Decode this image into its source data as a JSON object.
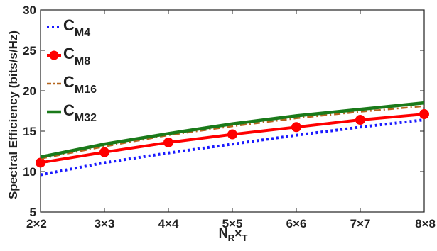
{
  "chart_data": {
    "type": "line",
    "categories": [
      "2×2",
      "3×3",
      "4×4",
      "5×5",
      "6×6",
      "7×7",
      "8×8"
    ],
    "xlabel": {
      "main": "N",
      "sub1": "R",
      "times": "×",
      "sub2": "T"
    },
    "ylabel": "Spectral Efficiency (bits/s/Hz)",
    "ylim": [
      5,
      30
    ],
    "yticks": [
      5,
      10,
      15,
      20,
      25,
      30
    ],
    "grid": false,
    "legend_position": "top-left",
    "series": [
      {
        "name": "C",
        "name_sub": "M4",
        "color": "#1a1aff",
        "style": "dotted",
        "values": [
          9.6,
          11.1,
          12.3,
          13.4,
          14.5,
          15.5,
          16.4
        ]
      },
      {
        "name": "C",
        "name_sub": "M8",
        "color": "#ff0000",
        "style": "solid-markers",
        "values": [
          11.1,
          12.4,
          13.6,
          14.6,
          15.5,
          16.4,
          17.1
        ]
      },
      {
        "name": "C",
        "name_sub": "M16",
        "color": "#b5651d",
        "style": "dash-dot",
        "values": [
          11.6,
          13.1,
          14.5,
          15.6,
          16.6,
          17.4,
          18.1
        ]
      },
      {
        "name": "C",
        "name_sub": "M32",
        "color": "#1a7a1a",
        "style": "solid",
        "values": [
          11.8,
          13.4,
          14.7,
          15.9,
          16.9,
          17.7,
          18.5
        ]
      }
    ]
  }
}
